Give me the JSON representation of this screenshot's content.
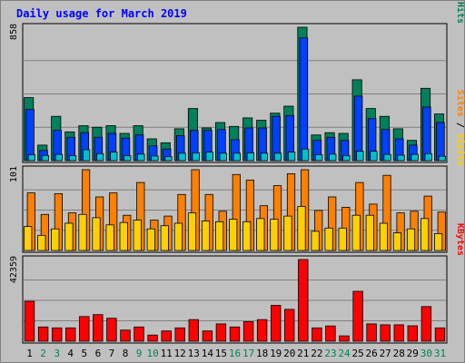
{
  "chart_data": {
    "type": "bar",
    "title": "Daily usage for March 2019",
    "categories": [
      "1",
      "2",
      "3",
      "4",
      "5",
      "6",
      "7",
      "8",
      "9",
      "10",
      "11",
      "12",
      "13",
      "14",
      "15",
      "16",
      "17",
      "18",
      "19",
      "20",
      "21",
      "22",
      "23",
      "24",
      "25",
      "26",
      "27",
      "28",
      "29",
      "30",
      "31"
    ],
    "weekend_days": [
      "2",
      "3",
      "9",
      "10",
      "16",
      "17",
      "23",
      "24",
      "30",
      "31"
    ],
    "panels": [
      {
        "name": "hits-files-pages",
        "ymax": 858,
        "ymax_label": "858",
        "side_label": [
          {
            "text": "Pages",
            "color": "#00c0d0"
          },
          {
            "text": " / ",
            "color": "#000000"
          },
          {
            "text": "Files",
            "color": "#0040ff"
          },
          {
            "text": " / ",
            "color": "#000000"
          },
          {
            "text": "Hits",
            "color": "#00805c"
          }
        ],
        "series": [
          {
            "name": "Hits",
            "color": "#00805c",
            "values": [
              405,
              100,
              285,
              185,
              225,
              215,
              225,
              175,
              225,
              140,
              115,
              205,
              335,
              210,
              245,
              220,
              275,
              260,
              305,
              350,
              858,
              165,
              180,
              175,
              520,
              335,
              285,
              205,
              130,
              465,
              300
            ]
          },
          {
            "name": "Files",
            "color": "#0040ff",
            "values": [
              330,
              65,
              195,
              150,
              180,
              150,
              175,
              145,
              165,
              95,
              75,
              160,
              195,
              195,
              200,
              135,
              210,
              210,
              285,
              290,
              790,
              130,
              150,
              130,
              415,
              270,
              200,
              140,
              100,
              345,
              245
            ]
          },
          {
            "name": "Pages",
            "color": "#00c0d0",
            "values": [
              38,
              33,
              40,
              32,
              70,
              45,
              55,
              32,
              42,
              30,
              25,
              48,
              50,
              55,
              48,
              48,
              50,
              48,
              48,
              55,
              75,
              38,
              42,
              32,
              60,
              60,
              40,
              35,
              40,
              45,
              28
            ]
          }
        ]
      },
      {
        "name": "sites-visits",
        "ymax": 101,
        "ymax_label": "101",
        "side_label": [
          {
            "text": "Sites",
            "color": "#ff8000"
          },
          {
            "text": " / ",
            "color": "#000000"
          },
          {
            "text": "Visits",
            "color": "#ffd000"
          }
        ],
        "series": [
          {
            "name": "Sites",
            "color": "#ff8000",
            "values": [
              72,
              45,
              71,
              47,
              101,
              67,
              72,
              44,
              85,
              38,
              43,
              70,
              101,
              70,
              49,
              95,
              88,
              56,
              81,
              96,
              101,
              50,
              67,
              54,
              85,
              58,
              94,
              47,
              49,
              68,
              48
            ]
          },
          {
            "name": "Visits",
            "color": "#ffd000",
            "values": [
              30,
              19,
              27,
              34,
              45,
              41,
              32,
              35,
              38,
              27,
              31,
              34,
              47,
              37,
              36,
              39,
              36,
              40,
              39,
              43,
              55,
              24,
              28,
              28,
              44,
              44,
              34,
              22,
              27,
              40,
              21
            ]
          }
        ]
      },
      {
        "name": "kbytes",
        "ymax": 42359,
        "ymax_label": "42359",
        "side_label": [
          {
            "text": "KBytes",
            "color": "#ff0000"
          }
        ],
        "series": [
          {
            "name": "KBytes",
            "color": "#ff0000",
            "values": [
              20700,
              7400,
              6900,
              6900,
              12800,
              13800,
              11900,
              5800,
              7400,
              3200,
              5300,
              6900,
              11200,
              5300,
              9000,
              7400,
              10100,
              11200,
              18600,
              16500,
              42359,
              6900,
              7900,
              2800,
              25900,
              9000,
              8500,
              8500,
              8000,
              18000,
              6900
            ]
          }
        ]
      }
    ]
  }
}
